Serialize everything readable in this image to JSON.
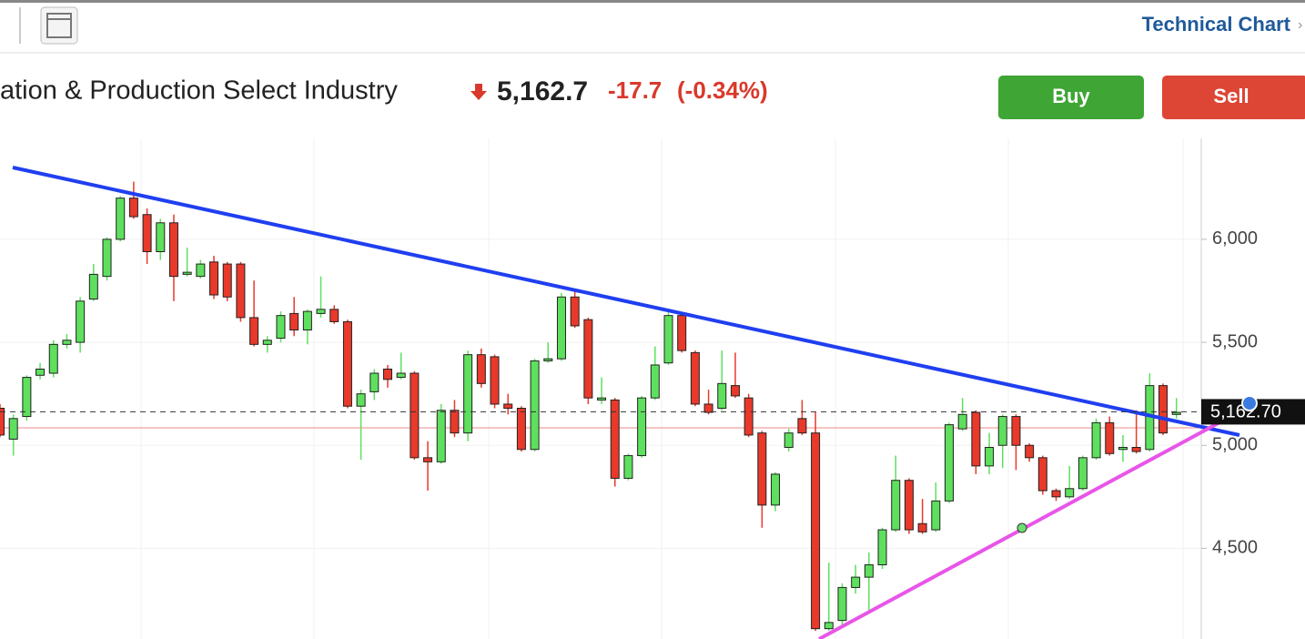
{
  "header": {
    "link": "Technical Chart",
    "title": "ation & Production Select Industry",
    "price": "5,162.7",
    "change": "-17.7",
    "change_pct": "(-0.34%)",
    "buy": "Buy",
    "sell": "Sell"
  },
  "chart_data": {
    "type": "candlestick",
    "up_color": "#5ee05e",
    "down_color": "#e8392b",
    "ylim": [
      4060,
      6490
    ],
    "yticks": [
      {
        "value": 4500,
        "label": "4,500"
      },
      {
        "value": 5000,
        "label": "5,000"
      },
      {
        "value": 5500,
        "label": "5,500"
      },
      {
        "value": 6000,
        "label": "6,000"
      }
    ],
    "last_price": {
      "value": 5162.7,
      "label": "5,162.70"
    },
    "open": [
      5180,
      5030,
      5140,
      5340,
      5350,
      5490,
      5500,
      5710,
      5820,
      6000,
      6200,
      6120,
      5940,
      6080,
      5830,
      5820,
      5890,
      5880,
      5880,
      5620,
      5490,
      5520,
      5640,
      5560,
      5640,
      5660,
      5600,
      5190,
      5260,
      5370,
      5330,
      5350,
      4940,
      4920,
      5170,
      5060,
      5440,
      5430,
      5200,
      5180,
      4980,
      5410,
      5420,
      5720,
      5610,
      5220,
      5220,
      4840,
      4950,
      5230,
      5400,
      5630,
      5450,
      5200,
      5180,
      5290,
      5230,
      5060,
      4710,
      4990,
      5130,
      5060,
      4110,
      4150,
      4310,
      4360,
      4420,
      4590,
      4830,
      4620,
      4590,
      4730,
      5080,
      5160,
      4900,
      5000,
      5140,
      5000,
      4940,
      4780,
      4750,
      4790,
      4940,
      5110,
      4980,
      4990,
      4980,
      5290,
      5150
    ],
    "high": [
      5200,
      5150,
      5340,
      5400,
      5510,
      5540,
      5720,
      5880,
      6010,
      6210,
      6280,
      6150,
      6100,
      6120,
      5960,
      5900,
      5920,
      5890,
      5890,
      5800,
      5530,
      5650,
      5720,
      5660,
      5820,
      5680,
      5610,
      5270,
      5370,
      5390,
      5450,
      5360,
      5020,
      5200,
      5220,
      5460,
      5470,
      5440,
      5250,
      5190,
      5420,
      5500,
      5740,
      5760,
      5620,
      5330,
      5230,
      4960,
      5240,
      5480,
      5650,
      5640,
      5460,
      5270,
      5460,
      5450,
      5250,
      5070,
      4870,
      5080,
      5220,
      5160,
      4430,
      4330,
      4420,
      4480,
      4600,
      4950,
      4840,
      4740,
      4820,
      5110,
      5230,
      5170,
      5060,
      5150,
      5150,
      5010,
      4950,
      4790,
      4900,
      4950,
      5130,
      5140,
      5050,
      5170,
      5350,
      5300,
      5230
    ],
    "low": [
      5040,
      4950,
      5120,
      5320,
      5330,
      5470,
      5450,
      5700,
      5800,
      5990,
      6100,
      5880,
      5900,
      5700,
      5820,
      5810,
      5710,
      5700,
      5600,
      5480,
      5450,
      5500,
      5530,
      5490,
      5620,
      5590,
      5180,
      4930,
      5220,
      5280,
      5320,
      4930,
      4780,
      4910,
      5040,
      5020,
      5280,
      5180,
      5150,
      4970,
      4970,
      5400,
      5410,
      5570,
      5200,
      5200,
      4800,
      4830,
      4940,
      5220,
      5390,
      5450,
      5190,
      5150,
      5170,
      5230,
      5040,
      4600,
      4680,
      4970,
      5050,
      4100,
      4100,
      4120,
      4280,
      4200,
      4400,
      4580,
      4570,
      4570,
      4580,
      4720,
      5070,
      4860,
      4860,
      4890,
      4880,
      4920,
      4760,
      4730,
      4740,
      4780,
      4930,
      4950,
      4920,
      4960,
      4970,
      5050,
      5130
    ],
    "close": [
      5050,
      5130,
      5330,
      5370,
      5490,
      5510,
      5700,
      5830,
      6000,
      6200,
      6110,
      5940,
      6080,
      5820,
      5840,
      5880,
      5730,
      5720,
      5620,
      5490,
      5510,
      5630,
      5560,
      5650,
      5660,
      5600,
      5190,
      5250,
      5350,
      5320,
      5350,
      4940,
      4920,
      5170,
      5060,
      5440,
      5300,
      5200,
      5180,
      4980,
      5410,
      5420,
      5720,
      5580,
      5230,
      5230,
      4840,
      4950,
      5230,
      5390,
      5630,
      5460,
      5200,
      5160,
      5300,
      5240,
      5050,
      4710,
      4860,
      5060,
      5060,
      4110,
      4140,
      4310,
      4360,
      4420,
      4590,
      4830,
      4590,
      4580,
      4730,
      5100,
      5150,
      4900,
      4990,
      5140,
      5000,
      4940,
      4780,
      4750,
      4790,
      4940,
      5110,
      4960,
      4990,
      4970,
      5290,
      5060,
      5160
    ]
  }
}
